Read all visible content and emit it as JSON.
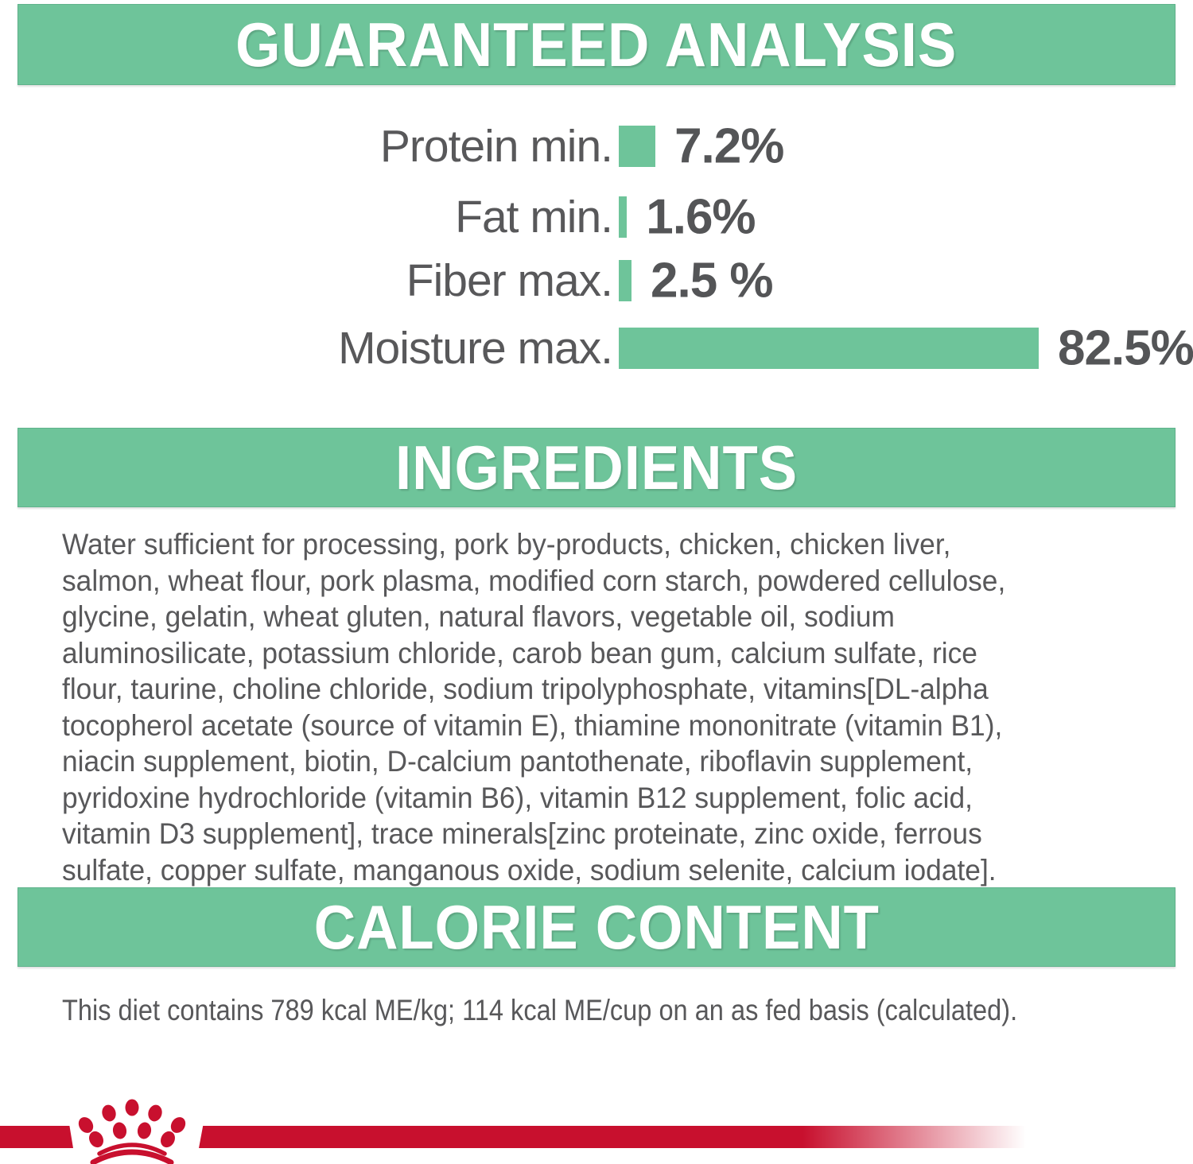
{
  "page": {
    "background": "#ffffff",
    "accent_green": "#6ec49a",
    "text_gray": "#58585a",
    "brand_red": "#c8102e"
  },
  "sections": {
    "guaranteed_analysis": {
      "title": "GUARANTEED ANALYSIS"
    },
    "ingredients": {
      "title": "INGREDIENTS",
      "lines": [
        "Water sufficient for processing, pork by-products, chicken, chicken liver,",
        "salmon, wheat flour, pork plasma, modified corn starch, powdered cellulose,",
        "glycine, gelatin, wheat gluten, natural flavors, vegetable oil, sodium",
        "aluminosilicate, potassium chloride, carob bean gum, calcium sulfate, rice",
        "flour, taurine, choline chloride, sodium tripolyphosphate, vitamins[DL-alpha",
        "tocopherol acetate (source of vitamin E), thiamine mononitrate (vitamin B1),",
        "niacin supplement, biotin, D-calcium pantothenate, riboflavin supplement,",
        "pyridoxine hydrochloride (vitamin B6), vitamin B12 supplement, folic acid,",
        "vitamin D3 supplement], trace minerals[zinc proteinate, zinc oxide, ferrous",
        "sulfate, copper sulfate, manganous oxide, sodium selenite, calcium iodate]."
      ]
    },
    "calorie_content": {
      "title": "CALORIE CONTENT",
      "text": "This diet contains 789 kcal ME/kg; 114 kcal ME/cup on an as fed basis (calculated)."
    }
  },
  "chart_data": {
    "type": "bar",
    "orientation": "horizontal",
    "title": "GUARANTEED ANALYSIS",
    "unit": "%",
    "categories": [
      "Protein min.",
      "Fat min.",
      "Fiber max.",
      "Moisture max."
    ],
    "values": [
      7.2,
      1.6,
      2.5,
      82.5
    ],
    "value_labels": [
      "7.2%",
      "1.6%",
      "2.5 %",
      "82.5%"
    ],
    "bar_color": "#6ec49a",
    "xlim": [
      0,
      100
    ],
    "grid": false,
    "legend": false
  },
  "footer": {
    "logo": "royal-canin-crown-logo"
  }
}
